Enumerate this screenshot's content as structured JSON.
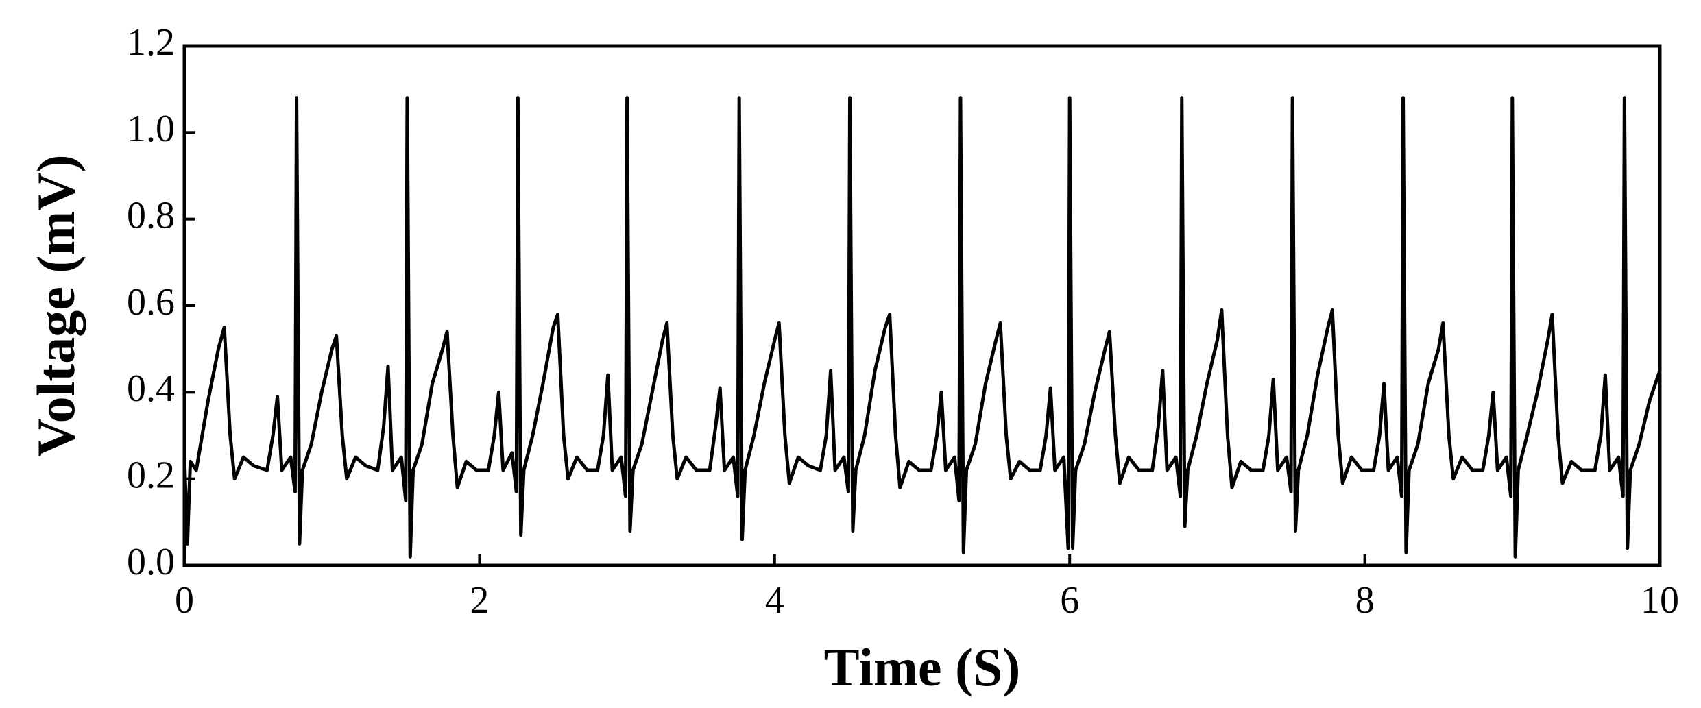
{
  "chart_data": {
    "type": "line",
    "xlabel": "Time (S)",
    "ylabel": "Voltage (mV)",
    "xlim": [
      0,
      10
    ],
    "xticks": [
      0,
      2,
      4,
      6,
      8,
      10
    ],
    "ylim": [
      0,
      1.2
    ],
    "yticks": [
      {
        "value": 0,
        "label": "0.0"
      },
      0.2,
      0.4,
      0.6,
      0.8,
      {
        "value": 1,
        "label": "1.0"
      },
      1.2
    ],
    "grid": false,
    "series": [
      {
        "color": "#000000",
        "x": [
          0,
          0.02,
          0.04,
          0.08,
          0.16,
          0.23,
          0.27,
          0.31,
          0.34,
          0.4,
          0.47,
          0.56,
          0.6,
          0.63,
          0.66,
          0.72,
          0.75,
          0.76,
          0.78,
          0.8,
          0.86,
          0.93,
          1.0,
          1.03,
          1.07,
          1.1,
          1.16,
          1.23,
          1.31,
          1.35,
          1.38,
          1.41,
          1.47,
          1.5,
          1.51,
          1.53,
          1.55,
          1.61,
          1.68,
          1.75,
          1.78,
          1.82,
          1.85,
          1.91,
          1.98,
          2.06,
          2.1,
          2.13,
          2.16,
          2.22,
          2.25,
          2.26,
          2.28,
          2.3,
          2.36,
          2.43,
          2.5,
          2.53,
          2.57,
          2.6,
          2.66,
          2.73,
          2.8,
          2.84,
          2.87,
          2.9,
          2.96,
          2.99,
          3.0,
          3.02,
          3.04,
          3.1,
          3.17,
          3.24,
          3.27,
          3.31,
          3.34,
          3.4,
          3.47,
          3.56,
          3.6,
          3.63,
          3.66,
          3.72,
          3.75,
          3.76,
          3.78,
          3.8,
          3.86,
          3.93,
          4.0,
          4.03,
          4.07,
          4.1,
          4.16,
          4.23,
          4.31,
          4.35,
          4.38,
          4.41,
          4.47,
          4.5,
          4.51,
          4.53,
          4.55,
          4.61,
          4.68,
          4.75,
          4.78,
          4.82,
          4.85,
          4.91,
          4.98,
          5.06,
          5.1,
          5.13,
          5.16,
          5.22,
          5.25,
          5.26,
          5.28,
          5.3,
          5.36,
          5.43,
          5.5,
          5.53,
          5.57,
          5.6,
          5.66,
          5.73,
          5.8,
          5.84,
          5.87,
          5.9,
          5.96,
          5.99,
          6.0,
          6.02,
          6.04,
          6.1,
          6.17,
          6.24,
          6.27,
          6.31,
          6.34,
          6.4,
          6.47,
          6.56,
          6.6,
          6.63,
          6.66,
          6.72,
          6.75,
          6.76,
          6.78,
          6.8,
          6.86,
          6.93,
          7.0,
          7.03,
          7.07,
          7.1,
          7.16,
          7.23,
          7.31,
          7.35,
          7.38,
          7.41,
          7.47,
          7.5,
          7.51,
          7.53,
          7.55,
          7.61,
          7.68,
          7.75,
          7.78,
          7.82,
          7.85,
          7.91,
          7.98,
          8.06,
          8.1,
          8.13,
          8.16,
          8.22,
          8.25,
          8.26,
          8.28,
          8.3,
          8.36,
          8.43,
          8.5,
          8.53,
          8.57,
          8.6,
          8.66,
          8.73,
          8.8,
          8.84,
          8.87,
          8.9,
          8.96,
          8.99,
          9.0,
          9.02,
          9.04,
          9.1,
          9.17,
          9.24,
          9.27,
          9.31,
          9.34,
          9.4,
          9.47,
          9.56,
          9.6,
          9.63,
          9.66,
          9.72,
          9.75,
          9.76,
          9.78,
          9.8,
          9.86,
          9.93,
          10.0
        ],
        "values": [
          0.25,
          0.05,
          0.24,
          0.22,
          0.38,
          0.5,
          0.55,
          0.3,
          0.2,
          0.25,
          0.23,
          0.22,
          0.3,
          0.39,
          0.22,
          0.25,
          0.17,
          1.08,
          0.05,
          0.22,
          0.28,
          0.4,
          0.5,
          0.53,
          0.3,
          0.2,
          0.25,
          0.23,
          0.22,
          0.32,
          0.46,
          0.22,
          0.25,
          0.15,
          1.08,
          0.02,
          0.22,
          0.28,
          0.42,
          0.5,
          0.54,
          0.3,
          0.18,
          0.24,
          0.22,
          0.22,
          0.3,
          0.4,
          0.22,
          0.26,
          0.17,
          1.08,
          0.07,
          0.22,
          0.3,
          0.42,
          0.55,
          0.58,
          0.3,
          0.2,
          0.25,
          0.22,
          0.22,
          0.3,
          0.44,
          0.22,
          0.25,
          0.16,
          1.08,
          0.08,
          0.22,
          0.28,
          0.4,
          0.52,
          0.56,
          0.3,
          0.2,
          0.25,
          0.22,
          0.22,
          0.32,
          0.41,
          0.22,
          0.25,
          0.16,
          1.08,
          0.06,
          0.22,
          0.3,
          0.42,
          0.52,
          0.56,
          0.3,
          0.19,
          0.25,
          0.23,
          0.22,
          0.3,
          0.45,
          0.22,
          0.25,
          0.17,
          1.08,
          0.08,
          0.22,
          0.3,
          0.45,
          0.55,
          0.58,
          0.3,
          0.18,
          0.24,
          0.22,
          0.22,
          0.3,
          0.4,
          0.22,
          0.25,
          0.15,
          1.08,
          0.03,
          0.22,
          0.28,
          0.42,
          0.52,
          0.56,
          0.3,
          0.2,
          0.24,
          0.22,
          0.22,
          0.3,
          0.41,
          0.22,
          0.25,
          0.04,
          1.08,
          0.04,
          0.22,
          0.28,
          0.4,
          0.5,
          0.54,
          0.3,
          0.19,
          0.25,
          0.22,
          0.22,
          0.32,
          0.45,
          0.22,
          0.25,
          0.16,
          1.08,
          0.09,
          0.22,
          0.3,
          0.42,
          0.52,
          0.59,
          0.3,
          0.18,
          0.24,
          0.22,
          0.22,
          0.3,
          0.43,
          0.22,
          0.25,
          0.17,
          1.08,
          0.08,
          0.22,
          0.3,
          0.44,
          0.55,
          0.59,
          0.3,
          0.19,
          0.25,
          0.22,
          0.22,
          0.3,
          0.42,
          0.22,
          0.25,
          0.16,
          1.08,
          0.03,
          0.22,
          0.28,
          0.42,
          0.5,
          0.56,
          0.3,
          0.2,
          0.25,
          0.22,
          0.22,
          0.3,
          0.4,
          0.22,
          0.25,
          0.16,
          1.08,
          0.02,
          0.22,
          0.3,
          0.4,
          0.52,
          0.58,
          0.3,
          0.19,
          0.24,
          0.22,
          0.22,
          0.3,
          0.44,
          0.22,
          0.25,
          0.16,
          1.08,
          0.04,
          0.22,
          0.28,
          0.38,
          0.45
        ]
      }
    ]
  }
}
